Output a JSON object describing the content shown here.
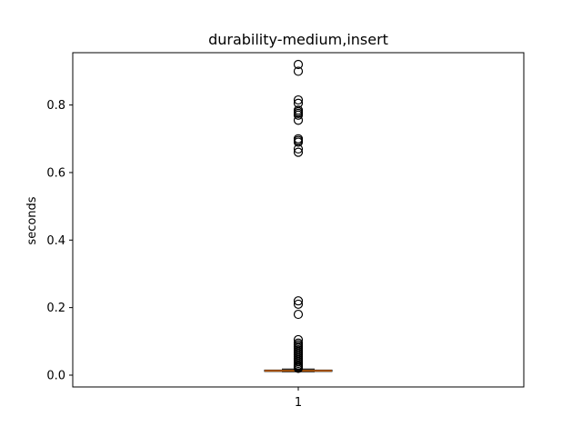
{
  "chart_data": {
    "type": "box",
    "title": "durability-medium,insert",
    "xlabel": "",
    "ylabel": "seconds",
    "categories": [
      "1"
    ],
    "ylim": [
      -0.035,
      0.955
    ],
    "yticks": [
      0.0,
      0.2,
      0.4,
      0.6,
      0.8
    ],
    "ytick_labels": [
      "0.0",
      "0.2",
      "0.4",
      "0.6",
      "0.8"
    ],
    "box": {
      "q1": 0.011,
      "median": 0.013,
      "q3": 0.015,
      "whisker_low": 0.01,
      "whisker_high": 0.018
    },
    "outliers": [
      0.92,
      0.9,
      0.815,
      0.805,
      0.785,
      0.78,
      0.775,
      0.77,
      0.755,
      0.7,
      0.695,
      0.69,
      0.67,
      0.66,
      0.22,
      0.21,
      0.18,
      0.105,
      0.095,
      0.09,
      0.085,
      0.08,
      0.075,
      0.07,
      0.065,
      0.06,
      0.055,
      0.05,
      0.045,
      0.04,
      0.035,
      0.03,
      0.028,
      0.025,
      0.022,
      0.02
    ],
    "grid": false,
    "colors": {
      "median": "#ff7f0e",
      "box": "#000000",
      "outlier": "#000000"
    }
  }
}
